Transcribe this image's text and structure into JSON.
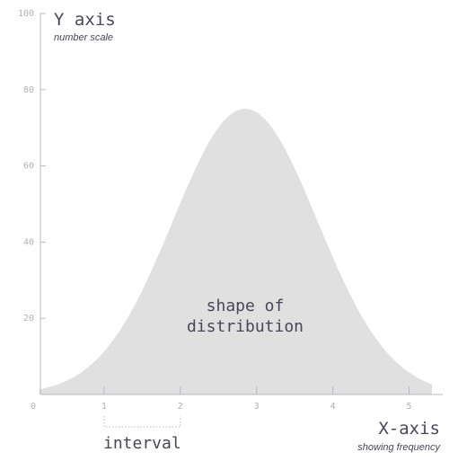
{
  "chart_data": {
    "type": "area",
    "title": "",
    "ylabel": "Y axis",
    "ylabel_sub": "number scale",
    "xlabel": "X-axis",
    "xlabel_sub": "showing frequency",
    "xlim": [
      0,
      5.5
    ],
    "ylim": [
      0,
      100
    ],
    "x_ticks": [
      0,
      1,
      2,
      3,
      4,
      5
    ],
    "y_ticks": [
      20,
      40,
      60,
      80,
      100
    ],
    "grid": false,
    "curve": {
      "mean": 2.85,
      "sd": 0.95,
      "peak": 75
    },
    "annotation": [
      "shape of",
      "distribution"
    ],
    "interval": {
      "label": "interval",
      "from": 1,
      "to": 2
    },
    "colors": {
      "area": "#e0e0e0",
      "axis": "#b8b8c0",
      "text": "#4a4558"
    }
  }
}
